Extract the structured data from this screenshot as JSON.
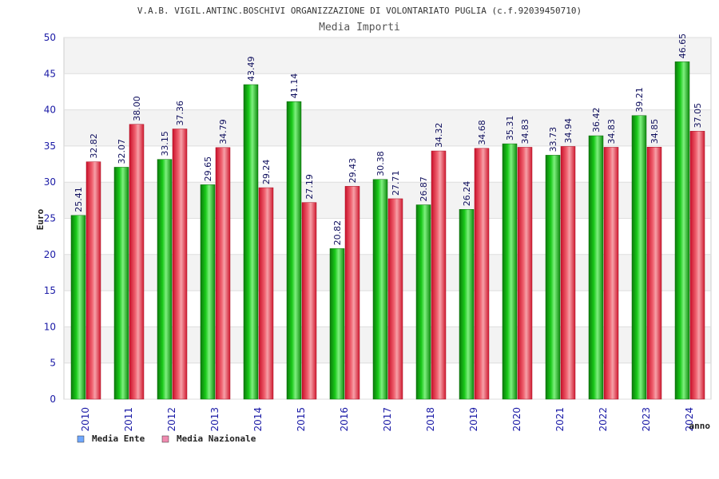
{
  "chart_data": {
    "type": "bar",
    "title": "V.A.B. VIGIL.ANTINC.BOSCHIVI ORGANIZZAZIONE DI VOLONTARIATO PUGLIA (c.f.92039450710)",
    "subtitle": "Media Importi",
    "ylabel": "Euro",
    "xlabel": "anno",
    "ylim": [
      0,
      50
    ],
    "yticks": [
      0,
      5,
      10,
      15,
      20,
      25,
      30,
      35,
      40,
      45,
      50
    ],
    "categories": [
      "2010",
      "2011",
      "2012",
      "2013",
      "2014",
      "2015",
      "2016",
      "2017",
      "2018",
      "2019",
      "2020",
      "2021",
      "2022",
      "2023",
      "2024"
    ],
    "series": [
      {
        "name": "Media Ente",
        "color": "#16b216",
        "legend_color": "#6fa8ff",
        "values": [
          25.41,
          32.07,
          33.15,
          29.65,
          43.49,
          41.14,
          20.82,
          30.38,
          26.87,
          26.24,
          35.31,
          33.73,
          36.42,
          39.21,
          46.65
        ]
      },
      {
        "name": "Media Nazionale",
        "color": "#ee2a3c",
        "legend_color": "#f08bb0",
        "values": [
          32.82,
          38.0,
          37.36,
          34.79,
          29.24,
          27.19,
          29.43,
          27.71,
          34.32,
          34.68,
          34.83,
          34.94,
          34.83,
          34.85,
          37.05
        ]
      }
    ],
    "grid": true,
    "legend_position": "bottom-left"
  }
}
